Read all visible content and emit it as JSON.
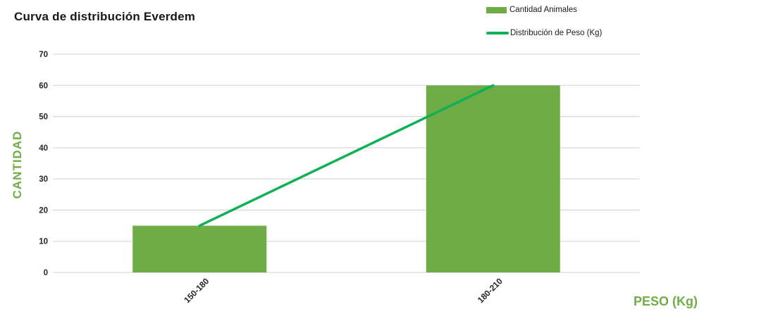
{
  "title": "Curva de distribución Everdem",
  "legend": {
    "items": [
      {
        "label": "Cantidad Animales",
        "swatch": "bar-swatch",
        "color": "#6FAC46"
      },
      {
        "label": "Distribución de Peso (Kg)",
        "swatch": "line-swatch",
        "color": "#10B155"
      }
    ]
  },
  "axes": {
    "y_title": "CANTIDAD",
    "x_title": "PESO (Kg)",
    "y_ticks": [
      0,
      10,
      20,
      30,
      40,
      50,
      60,
      70
    ],
    "x_ticks": [
      "150-180",
      "180-210"
    ]
  },
  "chart_data": {
    "type": "bar",
    "title": "Curva de distribución Everdem",
    "categories": [
      "150-180",
      "180-210"
    ],
    "series": [
      {
        "name": "Cantidad Animales",
        "type": "bar",
        "values": [
          15,
          60
        ],
        "color": "#6FAC46"
      },
      {
        "name": "Distribución de Peso (Kg)",
        "type": "line",
        "values": [
          15,
          60
        ],
        "color": "#10B155"
      }
    ],
    "xlabel": "PESO (Kg)",
    "ylabel": "CANTIDAD",
    "ylim": [
      0,
      70
    ],
    "ytick_step": 10,
    "grid": "horizontal",
    "legend_position": "top-right"
  },
  "colors": {
    "bar": "#6FAC46",
    "line": "#10B155",
    "axis_title": "#70AD47",
    "grid": "#D9D9D9",
    "tick_text": "#262626",
    "title_text": "#181818",
    "background": "#FFFFFF"
  }
}
